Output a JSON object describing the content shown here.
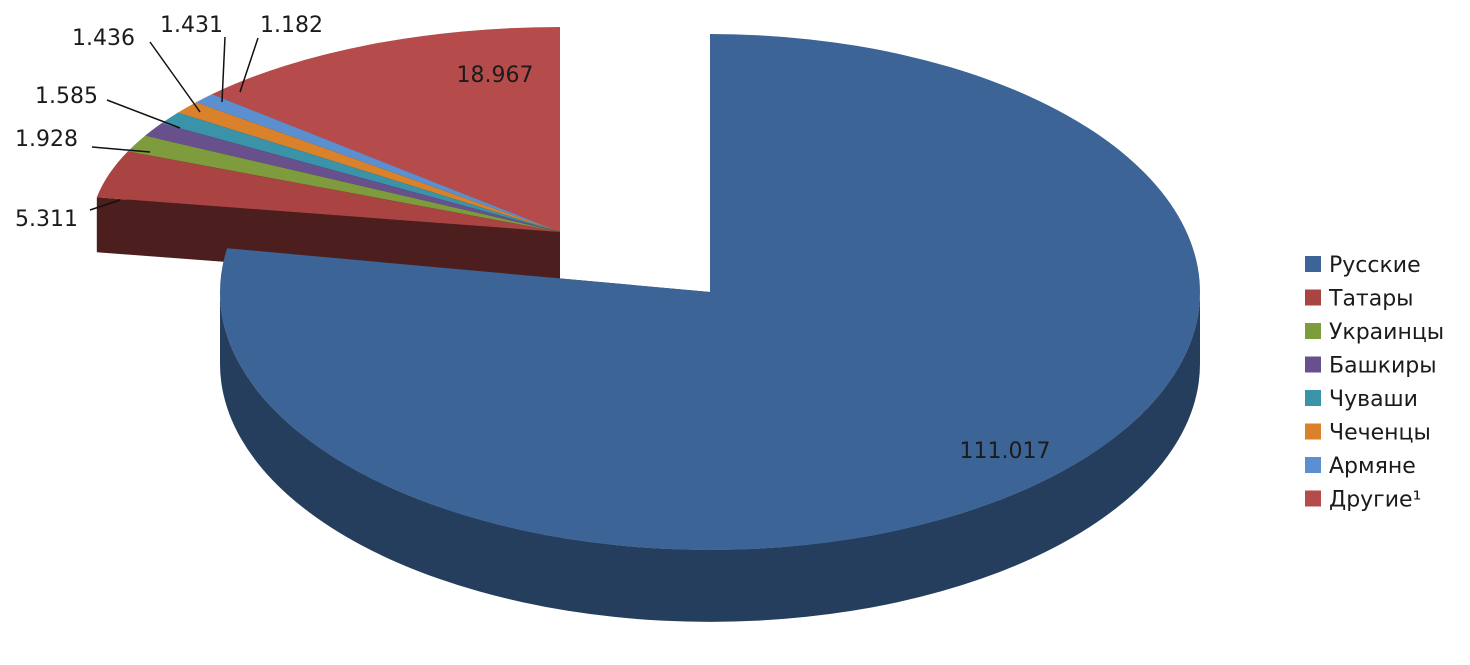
{
  "chart_data": {
    "type": "pie",
    "style": "3d-exploded",
    "legend_position": "right",
    "slices": [
      {
        "name": "Русские",
        "value": 111.017,
        "label": "111.017",
        "color": "#3d6496"
      },
      {
        "name": "Татары",
        "value": 5.311,
        "label": "5.311",
        "color": "#a94442"
      },
      {
        "name": "Украинцы",
        "value": 1.928,
        "label": "1.928",
        "color": "#7e9c3d"
      },
      {
        "name": "Башкиры",
        "value": 1.585,
        "label": "1.585",
        "color": "#67508b"
      },
      {
        "name": "Чуваши",
        "value": 1.436,
        "label": "1.436",
        "color": "#3a93a8"
      },
      {
        "name": "Чеченцы",
        "value": 1.431,
        "label": "1.431",
        "color": "#d9822b"
      },
      {
        "name": "Армяне",
        "value": 1.182,
        "label": "1.182",
        "color": "#5b8fcf"
      },
      {
        "name": "Другие¹",
        "value": 18.967,
        "label": "18.967",
        "color": "#b54b4b"
      }
    ]
  }
}
